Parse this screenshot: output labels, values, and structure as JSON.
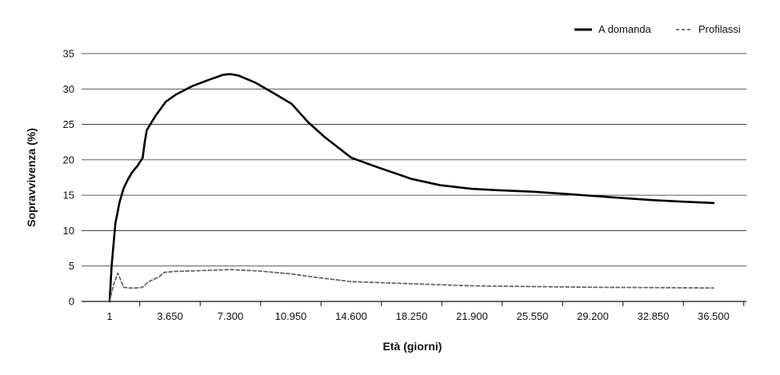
{
  "chart_data": {
    "type": "line",
    "title": "",
    "xlabel": "Età (giorni)",
    "ylabel": "Sopravvivenza (%)",
    "ylim": [
      0,
      35
    ],
    "yticks": [
      "0",
      "5",
      "10",
      "15",
      "20",
      "25",
      "30",
      "35"
    ],
    "xticks": [
      "1",
      "3.650",
      "7.300",
      "10.950",
      "14.600",
      "18.250",
      "21.900",
      "25.550",
      "29.200",
      "32.850",
      "36.500"
    ],
    "legend_position": "top-right",
    "grid": true,
    "series": [
      {
        "name": "A domanda",
        "color": "#000000",
        "style": "solid",
        "points": [
          [
            0,
            0
          ],
          [
            0.12,
            5
          ],
          [
            0.35,
            11
          ],
          [
            0.6,
            14
          ],
          [
            0.85,
            16
          ],
          [
            1.1,
            17.2
          ],
          [
            1.35,
            18.2
          ],
          [
            1.7,
            19.2
          ],
          [
            2.0,
            20.3
          ],
          [
            2.12,
            22.5
          ],
          [
            2.25,
            24.2
          ],
          [
            2.8,
            26.3
          ],
          [
            3.4,
            28.2
          ],
          [
            4.0,
            29.2
          ],
          [
            5.0,
            30.4
          ],
          [
            6.0,
            31.3
          ],
          [
            6.85,
            32.0
          ],
          [
            7.3,
            32.1
          ],
          [
            7.8,
            31.9
          ],
          [
            8.8,
            30.9
          ],
          [
            10.0,
            29.3
          ],
          [
            11.0,
            27.9
          ],
          [
            12.0,
            25.3
          ],
          [
            13.0,
            23.2
          ],
          [
            14.6,
            20.3
          ],
          [
            16.0,
            19.1
          ],
          [
            18.25,
            17.3
          ],
          [
            20.0,
            16.4
          ],
          [
            21.9,
            15.9
          ],
          [
            23.5,
            15.7
          ],
          [
            25.55,
            15.5
          ],
          [
            27.5,
            15.2
          ],
          [
            29.2,
            14.9
          ],
          [
            31.0,
            14.6
          ],
          [
            32.85,
            14.3
          ],
          [
            34.5,
            14.1
          ],
          [
            36.5,
            13.9
          ]
        ]
      },
      {
        "name": "Profilassi",
        "color": "#666666",
        "style": "dashed",
        "points": [
          [
            0,
            0
          ],
          [
            0.25,
            2.5
          ],
          [
            0.5,
            4.0
          ],
          [
            0.85,
            2.0
          ],
          [
            1.2,
            1.9
          ],
          [
            1.6,
            1.9
          ],
          [
            2.0,
            2.0
          ],
          [
            2.3,
            2.7
          ],
          [
            3.0,
            3.5
          ],
          [
            3.3,
            4.1
          ],
          [
            4.0,
            4.25
          ],
          [
            5.5,
            4.35
          ],
          [
            7.3,
            4.5
          ],
          [
            9.0,
            4.3
          ],
          [
            10.95,
            3.9
          ],
          [
            12.5,
            3.4
          ],
          [
            14.6,
            2.8
          ],
          [
            18.25,
            2.5
          ],
          [
            21.9,
            2.2
          ],
          [
            25.55,
            2.1
          ],
          [
            29.2,
            2.0
          ],
          [
            32.85,
            1.95
          ],
          [
            36.5,
            1.9
          ]
        ]
      }
    ]
  }
}
